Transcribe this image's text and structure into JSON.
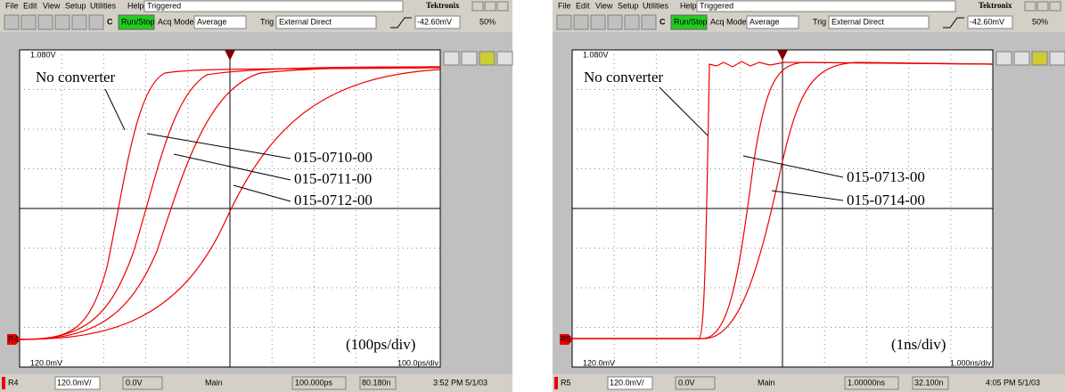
{
  "panels": [
    {
      "menu": [
        "File",
        "Edit",
        "View",
        "Setup",
        "Utilities",
        "Help"
      ],
      "trigger_status": "Triggered",
      "brand": "Tektronix",
      "toolbar": {
        "c": "C",
        "run": "Run/Stop",
        "acq": "Acq Mode",
        "acq_value": "Average",
        "trig": "Trig",
        "trig_value": "External Direct",
        "level": "-42.60mV",
        "percent": "50%"
      },
      "top_label": "1.080V",
      "bottom_label": "120.0mV",
      "scale_label": "100.0ps/div",
      "ref": "R4",
      "annotations": [
        "No converter",
        "015-0710-00",
        "015-0711-00",
        "015-0712-00"
      ],
      "note": "(100ps/div)",
      "status": {
        "ref": "R4",
        "volts": "120.0mV/",
        "offset": "0.0V",
        "main": "Main",
        "time": "100.000ps",
        "position": "80.180n",
        "clock": "3:52 PM 5/1/03"
      }
    },
    {
      "menu": [
        "File",
        "Edit",
        "View",
        "Setup",
        "Utilities",
        "Help"
      ],
      "trigger_status": "Triggered",
      "brand": "Tektronix",
      "toolbar": {
        "c": "C",
        "run": "Run/Stop",
        "acq": "Acq Mode",
        "acq_value": "Average",
        "trig": "Trig",
        "trig_value": "External Direct",
        "level": "-42.60mV",
        "percent": "50%"
      },
      "top_label": "1.080V",
      "bottom_label": "120.0mV",
      "scale_label": "1.000ns/div",
      "ref": "R5",
      "annotations": [
        "No converter",
        "015-0713-00",
        "015-0714-00"
      ],
      "note": "(1ns/div)",
      "status": {
        "ref": "R5",
        "volts": "120.0mV/",
        "offset": "0.0V",
        "main": "Main",
        "time": "1.00000ns",
        "position": "32.100n",
        "clock": "4:05 PM 5/1/03"
      }
    }
  ]
}
